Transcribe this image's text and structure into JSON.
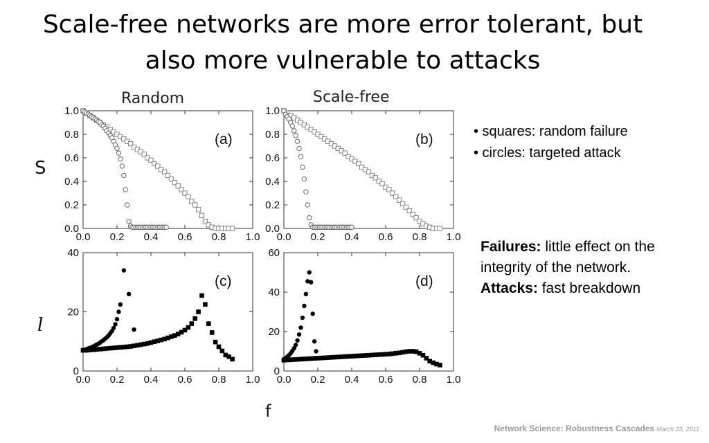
{
  "title": {
    "line1": "Scale-free networks are more error tolerant, but",
    "line2": "also more vulnerable to attacks"
  },
  "panel_headings": {
    "random": "Random",
    "scale_free": "Scale-free"
  },
  "axis_symbols": {
    "S": "S",
    "l": "l",
    "f": "f"
  },
  "legend": {
    "squares": "• squares: random failure",
    "circles": "• circles: targeted attack"
  },
  "notes": {
    "failures_label": "Failures:",
    "failures_text": " little effect on the integrity of the network.",
    "attacks_label": "Attacks:",
    "attacks_text": " fast breakdown"
  },
  "footer": {
    "course": "Network Science: Robustness Cascades",
    "date": "March 23, 2011"
  },
  "chart_data": [
    {
      "id": "a",
      "type": "scatter",
      "label": "(a)",
      "title": "Random",
      "xlabel": "",
      "ylabel": "S",
      "xlim": [
        0,
        1
      ],
      "ylim": [
        0,
        1
      ],
      "xticks": [
        0.0,
        0.2,
        0.4,
        0.6,
        0.8,
        1.0
      ],
      "yticks": [
        0.0,
        0.2,
        0.4,
        0.6,
        0.8,
        1.0
      ],
      "series": [
        {
          "marker": "open-square",
          "x": [
            0,
            0.02,
            0.04,
            0.06,
            0.08,
            0.1,
            0.12,
            0.14,
            0.16,
            0.18,
            0.2,
            0.22,
            0.24,
            0.26,
            0.28,
            0.3,
            0.32,
            0.34,
            0.36,
            0.38,
            0.4,
            0.42,
            0.44,
            0.46,
            0.48,
            0.5,
            0.52,
            0.54,
            0.56,
            0.58,
            0.6,
            0.62,
            0.64,
            0.66,
            0.68,
            0.7,
            0.72,
            0.74,
            0.76,
            0.78,
            0.8,
            0.82,
            0.84,
            0.86,
            0.88
          ],
          "y": [
            1.0,
            0.98,
            0.96,
            0.94,
            0.92,
            0.9,
            0.88,
            0.86,
            0.84,
            0.82,
            0.8,
            0.78,
            0.76,
            0.74,
            0.72,
            0.69,
            0.67,
            0.65,
            0.63,
            0.6,
            0.58,
            0.55,
            0.53,
            0.5,
            0.48,
            0.45,
            0.42,
            0.39,
            0.36,
            0.33,
            0.3,
            0.27,
            0.23,
            0.2,
            0.16,
            0.11,
            0.06,
            0.03,
            0.01,
            0.0,
            0.0,
            0.0,
            0.0,
            0.0,
            0.0
          ]
        },
        {
          "marker": "open-circle",
          "x": [
            0,
            0.01,
            0.02,
            0.03,
            0.04,
            0.05,
            0.06,
            0.07,
            0.08,
            0.09,
            0.1,
            0.11,
            0.12,
            0.13,
            0.14,
            0.15,
            0.16,
            0.17,
            0.18,
            0.19,
            0.2,
            0.21,
            0.22,
            0.23,
            0.24,
            0.25,
            0.26,
            0.27,
            0.28,
            0.29,
            0.3,
            0.31,
            0.32,
            0.33,
            0.34,
            0.35,
            0.36,
            0.37,
            0.38,
            0.39,
            0.4,
            0.41,
            0.42,
            0.43,
            0.44,
            0.45,
            0.46,
            0.47,
            0.48,
            0.49
          ],
          "y": [
            1.0,
            0.99,
            0.98,
            0.97,
            0.96,
            0.95,
            0.94,
            0.93,
            0.92,
            0.91,
            0.9,
            0.88,
            0.87,
            0.85,
            0.83,
            0.81,
            0.79,
            0.77,
            0.74,
            0.71,
            0.68,
            0.64,
            0.59,
            0.53,
            0.45,
            0.33,
            0.2,
            0.06,
            0.02,
            0.01,
            0.01,
            0.01,
            0.01,
            0.01,
            0.01,
            0.01,
            0.01,
            0.01,
            0.01,
            0.01,
            0.01,
            0.01,
            0.01,
            0.01,
            0.01,
            0.01,
            0.01,
            0.01,
            0.01,
            0.01
          ]
        }
      ]
    },
    {
      "id": "b",
      "type": "scatter",
      "label": "(b)",
      "title": "Scale-free",
      "xlabel": "",
      "ylabel": "",
      "xlim": [
        0,
        1
      ],
      "ylim": [
        0,
        1
      ],
      "xticks": [
        0.0,
        0.2,
        0.4,
        0.6,
        0.8,
        1.0
      ],
      "yticks": [
        0.0,
        0.2,
        0.4,
        0.6,
        0.8,
        1.0
      ],
      "series": [
        {
          "marker": "open-square",
          "x": [
            0,
            0.02,
            0.04,
            0.06,
            0.08,
            0.1,
            0.12,
            0.14,
            0.16,
            0.18,
            0.2,
            0.22,
            0.24,
            0.26,
            0.28,
            0.3,
            0.32,
            0.34,
            0.36,
            0.38,
            0.4,
            0.42,
            0.44,
            0.46,
            0.48,
            0.5,
            0.52,
            0.54,
            0.56,
            0.58,
            0.6,
            0.62,
            0.64,
            0.66,
            0.68,
            0.7,
            0.72,
            0.74,
            0.76,
            0.78,
            0.8,
            0.82,
            0.84,
            0.86,
            0.88,
            0.9,
            0.92
          ],
          "y": [
            1.0,
            0.98,
            0.96,
            0.94,
            0.92,
            0.9,
            0.88,
            0.86,
            0.84,
            0.82,
            0.8,
            0.78,
            0.76,
            0.74,
            0.72,
            0.7,
            0.68,
            0.66,
            0.64,
            0.61,
            0.59,
            0.57,
            0.55,
            0.52,
            0.5,
            0.48,
            0.45,
            0.43,
            0.4,
            0.38,
            0.35,
            0.33,
            0.3,
            0.27,
            0.24,
            0.21,
            0.18,
            0.15,
            0.12,
            0.09,
            0.06,
            0.04,
            0.02,
            0.01,
            0.0,
            0.0,
            0.0
          ]
        },
        {
          "marker": "open-circle",
          "x": [
            0,
            0.01,
            0.02,
            0.03,
            0.04,
            0.05,
            0.06,
            0.07,
            0.08,
            0.09,
            0.1,
            0.11,
            0.12,
            0.13,
            0.14,
            0.15,
            0.16,
            0.17,
            0.18,
            0.19,
            0.2,
            0.21,
            0.22,
            0.23,
            0.24,
            0.25,
            0.26,
            0.27,
            0.28,
            0.29,
            0.3,
            0.31,
            0.32,
            0.33,
            0.34,
            0.35,
            0.36,
            0.37,
            0.38,
            0.39,
            0.4
          ],
          "y": [
            1.0,
            0.97,
            0.95,
            0.93,
            0.9,
            0.87,
            0.83,
            0.79,
            0.74,
            0.68,
            0.61,
            0.52,
            0.42,
            0.31,
            0.2,
            0.09,
            0.03,
            0.01,
            0.01,
            0.01,
            0.01,
            0.01,
            0.01,
            0.01,
            0.01,
            0.01,
            0.01,
            0.01,
            0.01,
            0.01,
            0.01,
            0.01,
            0.01,
            0.01,
            0.01,
            0.01,
            0.01,
            0.01,
            0.01,
            0.01,
            0.01
          ]
        }
      ]
    },
    {
      "id": "c",
      "type": "scatter",
      "label": "(c)",
      "title": "",
      "xlabel": "f",
      "ylabel": "l",
      "xlim": [
        0,
        1
      ],
      "ylim": [
        0,
        40
      ],
      "xticks": [
        0.0,
        0.2,
        0.4,
        0.6,
        0.8,
        1.0
      ],
      "yticks": [
        0,
        20,
        40
      ],
      "series": [
        {
          "marker": "filled-square",
          "x": [
            0,
            0.02,
            0.04,
            0.06,
            0.08,
            0.1,
            0.12,
            0.14,
            0.16,
            0.18,
            0.2,
            0.22,
            0.24,
            0.26,
            0.28,
            0.3,
            0.32,
            0.34,
            0.36,
            0.38,
            0.4,
            0.42,
            0.44,
            0.46,
            0.48,
            0.5,
            0.52,
            0.54,
            0.56,
            0.58,
            0.6,
            0.62,
            0.64,
            0.66,
            0.68,
            0.7,
            0.72,
            0.74,
            0.76,
            0.78,
            0.8,
            0.82,
            0.84,
            0.86,
            0.88
          ],
          "y": [
            7,
            7,
            7.1,
            7.2,
            7.3,
            7.4,
            7.5,
            7.6,
            7.7,
            7.8,
            7.9,
            8.0,
            8.1,
            8.2,
            8.3,
            8.5,
            8.7,
            8.9,
            9.1,
            9.3,
            9.6,
            9.9,
            10.2,
            10.5,
            10.8,
            11.2,
            11.6,
            12.0,
            12.5,
            13.1,
            13.8,
            14.7,
            16.0,
            17.7,
            20.0,
            25.5,
            22.5,
            16.0,
            13.0,
            9.8,
            8.2,
            6.8,
            5.4,
            4.8,
            4.0
          ]
        },
        {
          "marker": "filled-circle",
          "x": [
            0,
            0.01,
            0.02,
            0.03,
            0.04,
            0.05,
            0.06,
            0.07,
            0.08,
            0.09,
            0.1,
            0.11,
            0.12,
            0.13,
            0.14,
            0.15,
            0.16,
            0.17,
            0.18,
            0.19,
            0.2,
            0.21,
            0.22,
            0.24,
            0.27,
            0.3
          ],
          "y": [
            7,
            7.2,
            7.4,
            7.6,
            7.8,
            8.0,
            8.3,
            8.6,
            8.9,
            9.2,
            9.6,
            10.0,
            10.4,
            10.9,
            11.4,
            12.0,
            12.7,
            13.5,
            14.5,
            15.8,
            17.5,
            20.0,
            22.5,
            34.0,
            26.0,
            14.0
          ]
        }
      ]
    },
    {
      "id": "d",
      "type": "scatter",
      "label": "(d)",
      "title": "",
      "xlabel": "f",
      "ylabel": "",
      "xlim": [
        0,
        1
      ],
      "ylim": [
        0,
        60
      ],
      "xticks": [
        0.0,
        0.2,
        0.4,
        0.6,
        0.8,
        1.0
      ],
      "yticks": [
        0,
        20,
        40,
        60
      ],
      "series": [
        {
          "marker": "filled-square",
          "x": [
            0,
            0.02,
            0.04,
            0.06,
            0.08,
            0.1,
            0.12,
            0.14,
            0.16,
            0.18,
            0.2,
            0.22,
            0.24,
            0.26,
            0.28,
            0.3,
            0.32,
            0.34,
            0.36,
            0.38,
            0.4,
            0.42,
            0.44,
            0.46,
            0.48,
            0.5,
            0.52,
            0.54,
            0.56,
            0.58,
            0.6,
            0.62,
            0.64,
            0.66,
            0.68,
            0.7,
            0.72,
            0.74,
            0.76,
            0.78,
            0.8,
            0.82,
            0.84,
            0.86,
            0.88,
            0.9,
            0.92
          ],
          "y": [
            5.5,
            5.6,
            5.7,
            5.8,
            5.9,
            6.0,
            6.1,
            6.2,
            6.3,
            6.4,
            6.5,
            6.6,
            6.7,
            6.8,
            6.9,
            7.0,
            7.1,
            7.2,
            7.3,
            7.4,
            7.5,
            7.6,
            7.7,
            7.8,
            7.9,
            8.0,
            8.1,
            8.2,
            8.3,
            8.4,
            8.5,
            8.6,
            8.8,
            9.0,
            9.2,
            9.5,
            9.8,
            10.0,
            10.0,
            9.8,
            9.0,
            8.0,
            6.5,
            5.0,
            4.2,
            3.5,
            3.0
          ]
        },
        {
          "marker": "filled-circle",
          "x": [
            0,
            0.01,
            0.02,
            0.03,
            0.04,
            0.05,
            0.06,
            0.07,
            0.08,
            0.09,
            0.1,
            0.11,
            0.12,
            0.13,
            0.14,
            0.15,
            0.16,
            0.17,
            0.18,
            0.19
          ],
          "y": [
            6,
            6.5,
            7.2,
            8.0,
            9.0,
            10.2,
            11.5,
            13.2,
            15.5,
            18.5,
            22.0,
            27.0,
            33.0,
            39.0,
            45.5,
            50.0,
            45.0,
            29.0,
            15.0,
            10.0
          ]
        }
      ]
    }
  ]
}
